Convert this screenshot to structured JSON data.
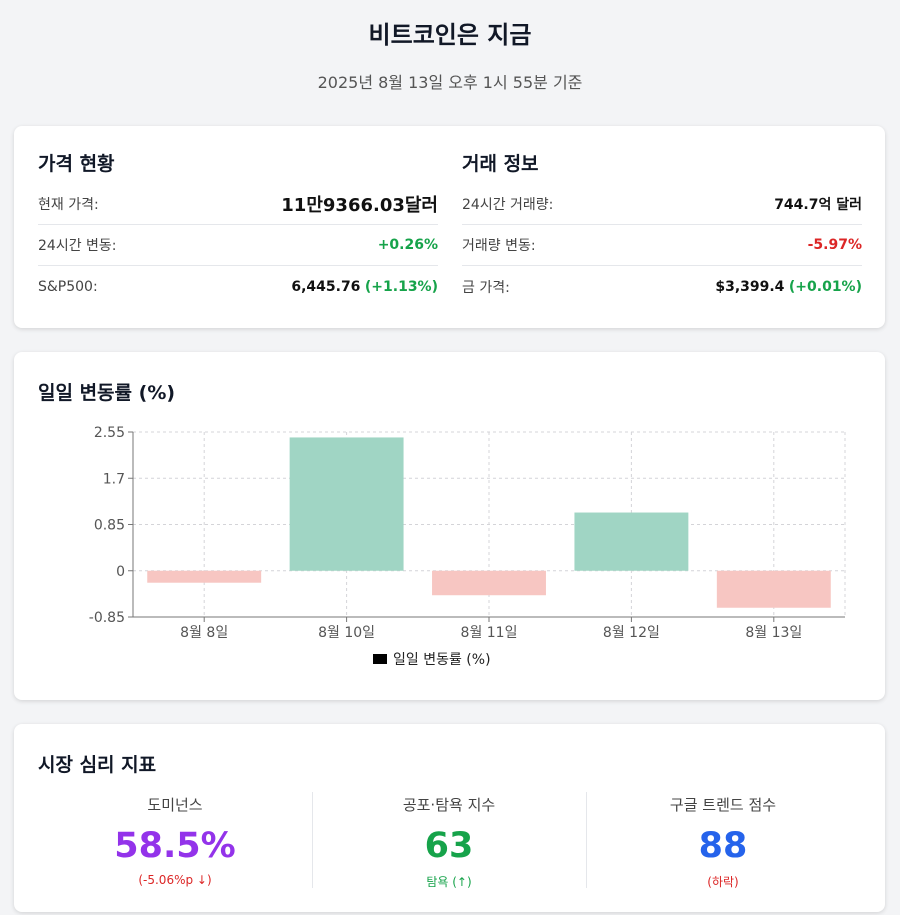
{
  "header": {
    "title": "비트코인은 지금",
    "subtitle": "2025년 8월 13일 오후 1시 55분 기준"
  },
  "price_status": {
    "title": "가격 현황",
    "rows": [
      {
        "label": "현재 가격:",
        "value": "11만9366.03달러",
        "change": ""
      },
      {
        "label": "24시간 변동:",
        "value": "",
        "change": "+0.26%"
      },
      {
        "label": "S&P500:",
        "value": "6,445.76",
        "change": "(+1.13%)"
      }
    ]
  },
  "trade_info": {
    "title": "거래 정보",
    "rows": [
      {
        "label": "24시간 거래량:",
        "value": "744.7억 달러",
        "change": ""
      },
      {
        "label": "거래량 변동:",
        "value": "",
        "change": "-5.97%"
      },
      {
        "label": "금 가격:",
        "value": "$3,399.4",
        "change": "(+0.01%)"
      }
    ]
  },
  "chart": {
    "title": "일일 변동률 (%)"
  },
  "chart_data": {
    "type": "bar",
    "categories": [
      "8월 8일",
      "8월 10일",
      "8월 11일",
      "8월 12일",
      "8월 13일"
    ],
    "series": [
      {
        "name": "일일 변동률 (%)",
        "values": [
          -0.22,
          2.45,
          -0.45,
          1.07,
          -0.68
        ]
      }
    ],
    "ylim": [
      -0.85,
      2.55
    ],
    "yticks": [
      "2.55",
      "1.7",
      "0.85",
      "0",
      "-0.85"
    ],
    "ytick_values": [
      2.55,
      1.7,
      0.85,
      0,
      -0.85
    ],
    "grid": true,
    "legend": "bottom",
    "colors": {
      "positive": "#a0d5c4",
      "negative": "#f7c6c2"
    }
  },
  "sentiment": {
    "title": "시장 심리 지표",
    "metrics": [
      {
        "label": "도미넌스",
        "value": "58.5%",
        "sub": "(-5.06%p ↓)",
        "color": "#9333ea",
        "sub_color": "#dc2626"
      },
      {
        "label": "공포·탐욕 지수",
        "value": "63",
        "sub": "탐욕 (↑)",
        "color": "#16a34a",
        "sub_color": "#16a34a"
      },
      {
        "label": "구글 트렌드 점수",
        "value": "88",
        "sub": "(하락)",
        "color": "#2563eb",
        "sub_color": "#dc2626"
      }
    ]
  }
}
